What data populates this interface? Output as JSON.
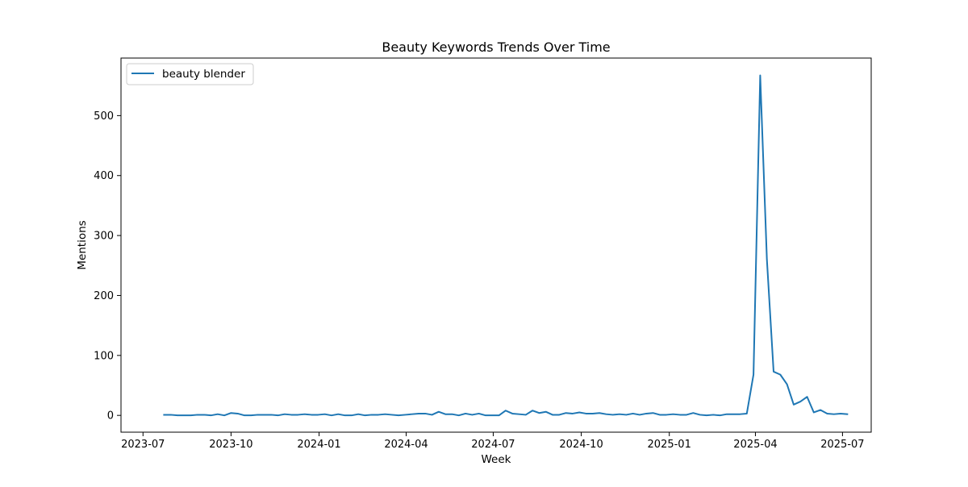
{
  "chart_data": {
    "type": "line",
    "title": "Beauty Keywords Trends Over Time",
    "xlabel": "Week",
    "ylabel": "Mentions",
    "x_ticks": [
      "2023-07",
      "2023-10",
      "2024-01",
      "2024-04",
      "2024-07",
      "2024-10",
      "2025-01",
      "2025-04",
      "2025-07"
    ],
    "y_ticks": [
      0,
      100,
      200,
      300,
      400,
      500
    ],
    "xlim": [
      "2023-06-08",
      "2025-07-31"
    ],
    "ylim": [
      -28,
      596
    ],
    "grid": false,
    "legend_position": "upper left",
    "series": [
      {
        "name": "beauty blender",
        "color": "#1f77b4",
        "start_date": "2023-07-23",
        "interval": "weekly",
        "values": [
          1,
          1,
          0,
          0,
          0,
          1,
          1,
          0,
          2,
          0,
          4,
          3,
          0,
          0,
          1,
          1,
          1,
          0,
          2,
          1,
          1,
          2,
          1,
          1,
          2,
          0,
          2,
          0,
          0,
          2,
          0,
          1,
          1,
          2,
          1,
          0,
          1,
          2,
          3,
          3,
          1,
          6,
          2,
          2,
          0,
          3,
          1,
          3,
          0,
          0,
          0,
          8,
          3,
          2,
          1,
          8,
          4,
          6,
          1,
          1,
          4,
          3,
          5,
          3,
          3,
          4,
          2,
          1,
          2,
          1,
          3,
          1,
          3,
          4,
          1,
          1,
          2,
          1,
          1,
          4,
          1,
          0,
          1,
          0,
          2,
          2,
          2,
          3,
          68,
          567,
          260,
          73,
          68,
          52,
          18,
          23,
          31,
          5,
          9,
          3,
          2,
          3,
          2
        ]
      }
    ]
  }
}
